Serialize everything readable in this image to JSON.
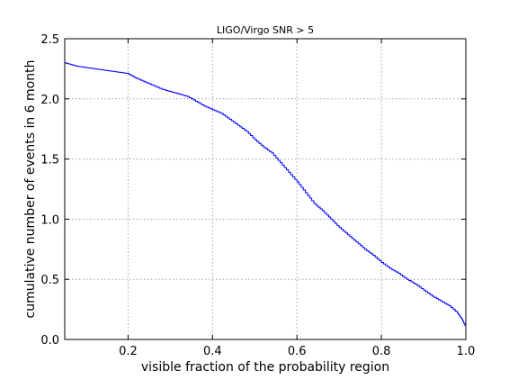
{
  "chart_data": {
    "type": "line",
    "title": "LIGO/Virgo SNR > 5",
    "xlabel": "visible fraction of the probability region",
    "ylabel": "cumulative number of events in 6 month",
    "xlim": [
      0.05,
      1.0
    ],
    "ylim": [
      0.0,
      2.5
    ],
    "xticks": [
      0.2,
      0.4,
      0.6,
      0.8,
      1.0
    ],
    "xtick_labels": [
      "0.2",
      "0.4",
      "0.6",
      "0.8",
      "1.0"
    ],
    "yticks": [
      0.0,
      0.5,
      1.0,
      1.5,
      2.0,
      2.5
    ],
    "ytick_labels": [
      "0.0",
      "0.5",
      "1.0",
      "1.5",
      "2.0",
      "2.5"
    ],
    "grid": true,
    "line_color": "#0000ff",
    "series": [
      {
        "x": [
          0.05,
          0.06,
          0.07,
          0.08,
          0.1,
          0.12,
          0.14,
          0.16,
          0.18,
          0.2,
          0.21,
          0.22,
          0.24,
          0.26,
          0.28,
          0.3,
          0.32,
          0.34,
          0.36,
          0.38,
          0.4,
          0.42,
          0.44,
          0.46,
          0.48,
          0.5,
          0.52,
          0.54,
          0.56,
          0.58,
          0.6,
          0.62,
          0.64,
          0.66,
          0.68,
          0.7,
          0.72,
          0.74,
          0.76,
          0.78,
          0.8,
          0.82,
          0.84,
          0.86,
          0.88,
          0.9,
          0.92,
          0.94,
          0.96,
          0.98,
          0.99,
          1.0
        ],
        "y": [
          2.3,
          2.29,
          2.28,
          2.27,
          2.26,
          2.25,
          2.24,
          2.23,
          2.22,
          2.21,
          2.19,
          2.17,
          2.14,
          2.11,
          2.08,
          2.06,
          2.04,
          2.02,
          1.98,
          1.94,
          1.91,
          1.88,
          1.83,
          1.78,
          1.73,
          1.66,
          1.6,
          1.55,
          1.47,
          1.39,
          1.31,
          1.22,
          1.13,
          1.07,
          1.0,
          0.93,
          0.87,
          0.81,
          0.75,
          0.7,
          0.64,
          0.59,
          0.55,
          0.5,
          0.46,
          0.41,
          0.36,
          0.32,
          0.28,
          0.22,
          0.17,
          0.1
        ]
      }
    ]
  }
}
